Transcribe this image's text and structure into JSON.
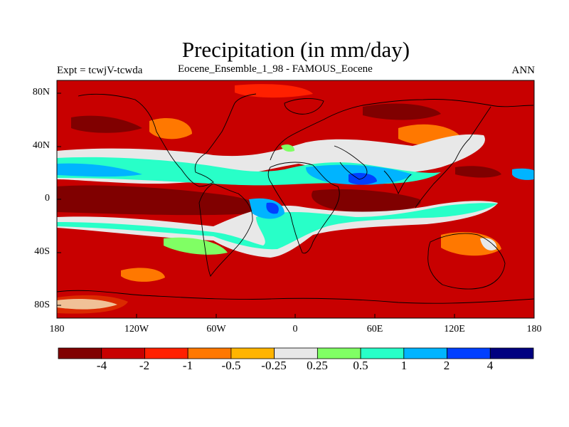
{
  "header": {
    "title": "Precipitation (in mm/day)",
    "left_label": "Expt = tcwjV-tcwda",
    "center_label": "Eocene_Ensemble_1_98 - FAMOUS_Eocene",
    "right_label": "ANN"
  },
  "axes": {
    "lat_ticks": [
      "80N",
      "40N",
      "0",
      "40S",
      "80S"
    ],
    "lon_ticks": [
      "180",
      "120W",
      "60W",
      "0",
      "60E",
      "120E",
      "180"
    ]
  },
  "colorbar": {
    "colors": [
      "#800000",
      "#c80000",
      "#ff2000",
      "#ff7800",
      "#ffb400",
      "#e8e8e8",
      "#80ff64",
      "#28ffc8",
      "#00b4ff",
      "#0040ff",
      "#000080"
    ],
    "labels": [
      "-4",
      "-2",
      "-1",
      "-0.5",
      "-0.25",
      "0.25",
      "0.5",
      "1",
      "2",
      "4"
    ]
  },
  "map": {
    "background_color": "#c80000"
  }
}
